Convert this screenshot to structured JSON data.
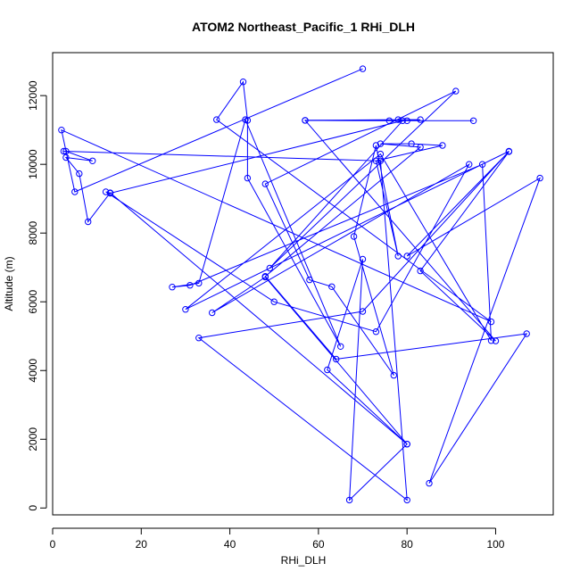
{
  "chart_data": {
    "type": "line",
    "title": "ATOM2 Northeast_Pacific_1 RHi_DLH",
    "xlabel": "RHi_DLH",
    "ylabel": "Altitude (m)",
    "xlim": [
      0,
      113
    ],
    "ylim": [
      -200,
      13250
    ],
    "x_ticks": [
      0,
      20,
      40,
      60,
      80,
      100
    ],
    "y_ticks": [
      0,
      2000,
      4000,
      6000,
      8000,
      10000,
      12000
    ],
    "grid": false,
    "line_color": "#0000ff",
    "marker": "open-circle",
    "series": [
      {
        "points": [
          [
            70,
            12780
          ],
          [
            5,
            9200
          ],
          [
            2,
            11000
          ],
          [
            99,
            5420
          ],
          [
            37,
            11300
          ],
          [
            43,
            12400
          ],
          [
            44,
            11280
          ],
          [
            44,
            9600
          ],
          [
            65,
            4700
          ],
          [
            43.5,
            11300
          ],
          [
            33,
            6540
          ],
          [
            27,
            6430
          ],
          [
            31,
            6480
          ],
          [
            97,
            10000
          ],
          [
            99,
            4870
          ],
          [
            74,
            10300
          ],
          [
            30,
            5780
          ],
          [
            103,
            10380
          ],
          [
            70,
            5720
          ],
          [
            33,
            4950
          ],
          [
            80,
            230
          ],
          [
            74,
            10100
          ],
          [
            2.5,
            10380
          ],
          [
            3,
            10380
          ],
          [
            9,
            10100
          ],
          [
            3,
            10200
          ],
          [
            6,
            9730
          ],
          [
            8,
            8330
          ],
          [
            13,
            9170
          ],
          [
            80,
            1860
          ],
          [
            62,
            4020
          ],
          [
            70,
            7240
          ],
          [
            67,
            230
          ],
          [
            80,
            1860
          ],
          [
            48,
            6720
          ],
          [
            36,
            5680
          ],
          [
            94,
            10000
          ],
          [
            73,
            5130
          ],
          [
            50,
            6000
          ],
          [
            12,
            9200
          ],
          [
            13,
            9160
          ],
          [
            79,
            11270
          ],
          [
            49,
            6980
          ],
          [
            91,
            12130
          ],
          [
            48,
            9430
          ],
          [
            58,
            6640
          ],
          [
            63,
            6440
          ],
          [
            77,
            3860
          ],
          [
            68,
            7900
          ],
          [
            73,
            10550
          ],
          [
            78,
            7330
          ],
          [
            73,
            10100
          ],
          [
            88,
            10550
          ],
          [
            81,
            10600
          ],
          [
            74,
            10600
          ],
          [
            83,
            10500
          ],
          [
            48,
            6740
          ],
          [
            64,
            4330
          ],
          [
            107,
            5070
          ],
          [
            85,
            720
          ],
          [
            110,
            9600
          ],
          [
            80,
            7330
          ],
          [
            103,
            10370
          ],
          [
            83,
            6900
          ],
          [
            100,
            4860
          ],
          [
            57,
            11280
          ],
          [
            95,
            11270
          ],
          [
            76,
            11270
          ],
          [
            57,
            11280
          ],
          [
            78,
            11300
          ],
          [
            83,
            11300
          ],
          [
            80,
            11270
          ]
        ]
      }
    ]
  }
}
